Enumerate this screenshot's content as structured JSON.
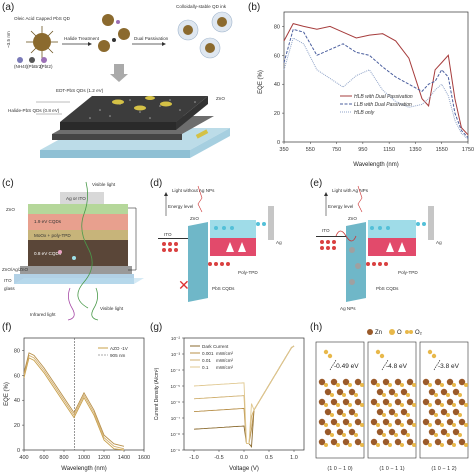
{
  "labels": {
    "a": "(a)",
    "b": "(b)",
    "c": "(c)",
    "d": "(d)",
    "e": "(e)",
    "f": "(f)",
    "g": "(g)",
    "h": "(h)"
  },
  "panel_a": {
    "top_left": "Oleic Acid Capped PbS QD",
    "top_right": "Colloidally-stable QD ink",
    "step1": "Halide Treatment",
    "step2": "Dual Passivation",
    "size": "~3.5 nm",
    "ligands": [
      "(NH4I)",
      "(PbBr2)",
      "(PbI2)"
    ],
    "layer1": "EDT-PbS QDs (1.2 eV)",
    "layer2": "Halide-PbS QDs (0.8 eV)",
    "layer3": "ZnO"
  },
  "panel_b": {
    "ylabel": "EQE (%)",
    "xlabel": "Wavelength (nm)",
    "xticks": [
      "350",
      "550",
      "750",
      "950",
      "1150",
      "1350",
      "1550",
      "1750"
    ],
    "yticks": [
      "0",
      "20",
      "40",
      "60",
      "80"
    ],
    "legend": [
      "HLB with Dual Passivation",
      "LLB with Dual Passivation",
      "HLB only"
    ],
    "colors": [
      "#a63c3c",
      "#4a5e9e",
      "#8fa3c8"
    ]
  },
  "panel_c": {
    "layers": [
      "Ag or ITO",
      "ZnO",
      "1.9 eV CQDs",
      "MoOx + poly-TPD",
      "0.8 eV CQDs",
      "ZnO/Ag/ZnO",
      "ITO",
      "glass"
    ],
    "top": "Visible light",
    "bottom_left": "Infrared light",
    "bottom_right": "Visible light"
  },
  "panel_d": {
    "title": "Light without Ag NPs",
    "energy": "Energy level",
    "ito": "ITO",
    "zno": "ZnO",
    "ag": "Ag",
    "tpd": "Poly-TPD",
    "pbs": "PbS CQDs"
  },
  "panel_e": {
    "title": "Light with Ag NPs",
    "energy": "Energy level",
    "ito": "ITO",
    "zno": "ZnO",
    "ag": "Ag",
    "agnp": "Ag NPs",
    "tpd": "Poly-TPD",
    "pbs": "PbS CQDs"
  },
  "panel_f": {
    "ylabel": "EQE (%)",
    "xlabel": "Wavelength (nm)",
    "xticks": [
      "400",
      "600",
      "800",
      "1000",
      "1200",
      "1400",
      "1600"
    ],
    "yticks": [
      "0",
      "20",
      "40",
      "60",
      "80"
    ],
    "legend": [
      "AZO -1V",
      "905 nm"
    ]
  },
  "panel_g": {
    "ylabel": "Current Density (A/cm²)",
    "xlabel": "Voltage (V)",
    "xticks": [
      "-1.0",
      "-0.5",
      "0.0",
      "0.5",
      "1.0"
    ],
    "yticks": [
      "10⁻⁹",
      "10⁻⁸",
      "10⁻⁷",
      "10⁻⁶",
      "10⁻⁵",
      "10⁻⁴",
      "10⁻³",
      "10⁻²"
    ],
    "legend": [
      "Dark Current",
      "0.001",
      "0.01",
      "0.1"
    ],
    "legend_unit": "mW/cm²"
  },
  "panel_h": {
    "legend": [
      "Zn",
      "O",
      "O₂"
    ],
    "energies": [
      "-0.49 eV",
      "-4.8 eV",
      "-3.8 eV"
    ],
    "facets": [
      "(1 0 − 1 0)",
      "(1 0 − 1 1)",
      "(1 0 − 1 2)"
    ]
  }
}
